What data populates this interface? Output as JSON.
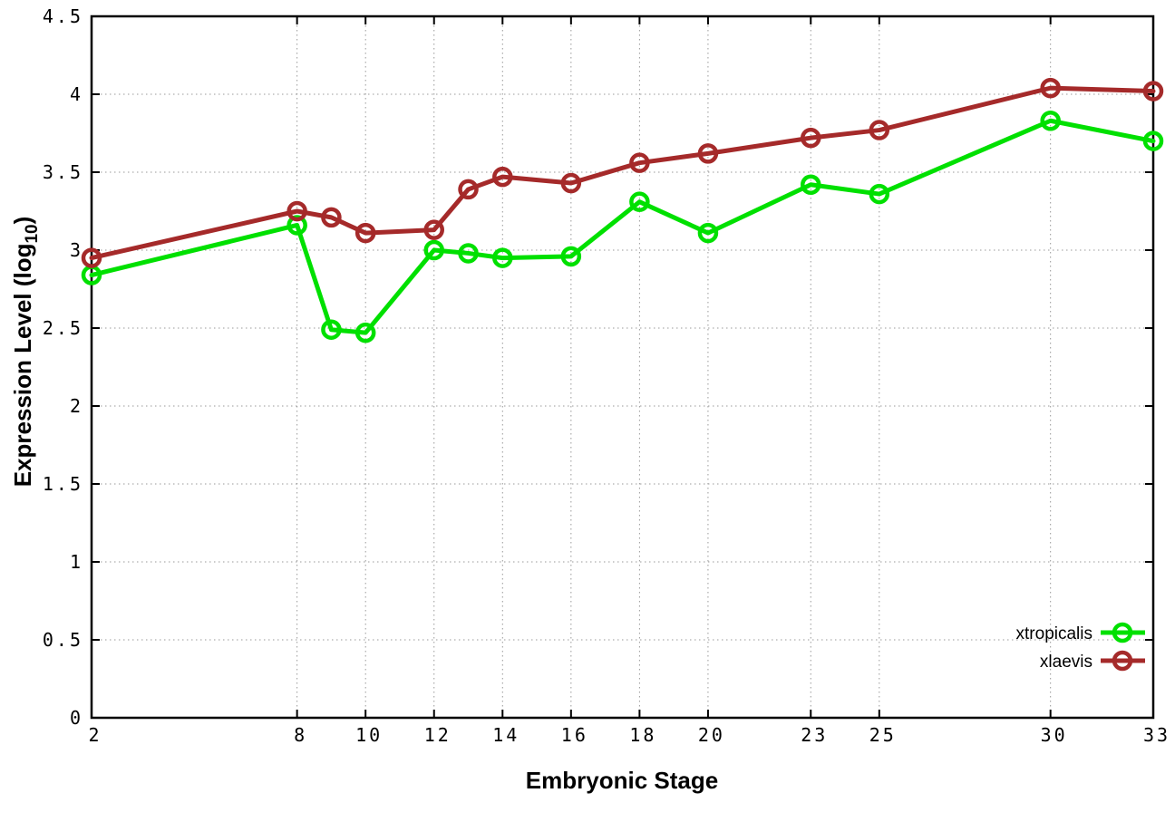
{
  "chart_data": {
    "type": "line",
    "title": "",
    "xlabel": "Embryonic Stage",
    "ylabel": "Expression Level (log10)",
    "ylabel_parts": {
      "prefix": "Expression Level (log",
      "subscript": "10",
      "suffix": ")"
    },
    "x": [
      2,
      8,
      9,
      10,
      12,
      13,
      14,
      16,
      18,
      20,
      23,
      25,
      30,
      33
    ],
    "series": [
      {
        "name": "xtropicalis",
        "color": "#00e000",
        "values": [
          2.84,
          3.16,
          2.49,
          2.47,
          3.0,
          2.98,
          2.95,
          2.96,
          3.31,
          3.11,
          3.42,
          3.36,
          3.83,
          3.7
        ]
      },
      {
        "name": "xlaevis",
        "color": "#a52a2a",
        "values": [
          2.95,
          3.25,
          3.21,
          3.11,
          3.13,
          3.39,
          3.47,
          3.43,
          3.56,
          3.62,
          3.72,
          3.77,
          4.04,
          4.02
        ]
      }
    ],
    "xlim": [
      2,
      33
    ],
    "ylim": [
      0,
      4.5
    ],
    "x_ticks": [
      2,
      8,
      10,
      12,
      14,
      16,
      18,
      20,
      23,
      25,
      30,
      33
    ],
    "x_tick_labels": [
      "2",
      "8",
      "10",
      "12",
      "14",
      "16",
      "18",
      "20",
      "23",
      "25",
      "30",
      "33"
    ],
    "y_ticks": [
      0,
      0.5,
      1,
      1.5,
      2,
      2.5,
      3,
      3.5,
      4,
      4.5
    ],
    "y_tick_labels": [
      "0",
      "0.5",
      "1",
      "1.5",
      "2",
      "2.5",
      "3",
      "3.5",
      "4",
      "4.5"
    ],
    "grid": true,
    "grid_style": "dotted",
    "legend_position": "bottom-right",
    "legend": [
      "xtropicalis",
      "xlaevis"
    ],
    "marker": "open-circle"
  },
  "styles": {
    "background": "#ffffff",
    "axis_color": "#000000",
    "grid_color": "#999999",
    "text_color": "#000000"
  }
}
